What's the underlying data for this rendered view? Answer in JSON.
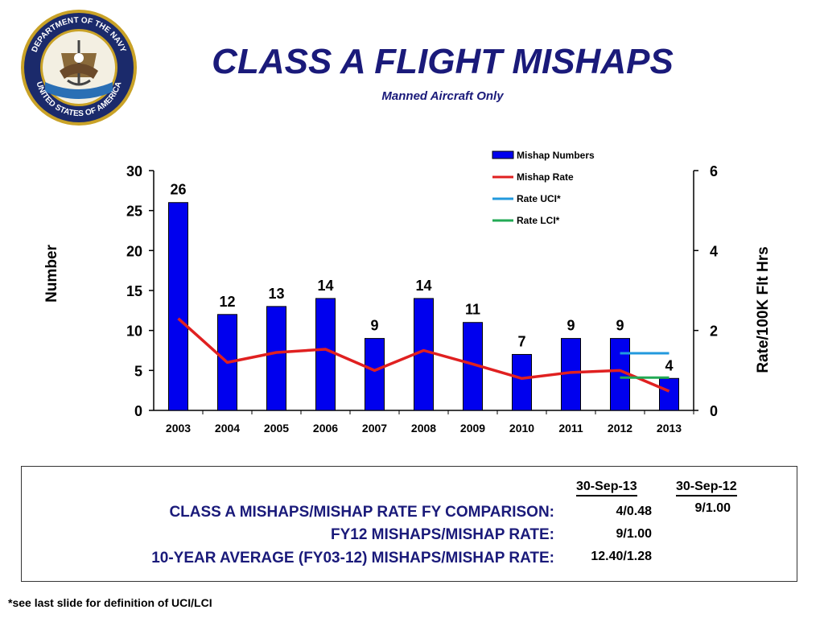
{
  "seal": {
    "text": "DEPARTMENT OF THE NAVY • UNITED STATES OF AMERICA"
  },
  "header": {
    "title": "CLASS A FLIGHT MISHAPS",
    "subtitle": "Manned Aircraft Only"
  },
  "chart_data": {
    "type": "bar",
    "categories": [
      "2003",
      "2004",
      "2005",
      "2006",
      "2007",
      "2008",
      "2009",
      "2010",
      "2011",
      "2012",
      "2013"
    ],
    "series": [
      {
        "name": "Mishap Numbers",
        "type": "bar",
        "axis": "left",
        "values": [
          26,
          12,
          13,
          14,
          9,
          14,
          11,
          7,
          9,
          9,
          4
        ],
        "color": "#0000ee"
      },
      {
        "name": "Mishap Rate",
        "type": "line",
        "axis": "right",
        "values": [
          2.3,
          1.2,
          1.45,
          1.53,
          1.0,
          1.5,
          1.16,
          0.8,
          0.95,
          1.0,
          0.48
        ],
        "color": "#e02020"
      },
      {
        "name": "Rate UCI*",
        "type": "line",
        "axis": "right",
        "x": [
          "2012",
          "2013"
        ],
        "values": [
          1.43,
          1.43
        ],
        "color": "#2299dd"
      },
      {
        "name": "Rate LCI*",
        "type": "line",
        "axis": "right",
        "x": [
          "2012",
          "2013"
        ],
        "values": [
          0.82,
          0.82
        ],
        "color": "#22aa55"
      }
    ],
    "data_labels": [
      "26",
      "12",
      "13",
      "14",
      "9",
      "14",
      "11",
      "7",
      "9",
      "9",
      "4"
    ],
    "ylabel": "Number",
    "y2label": "Rate/100K Flt Hrs",
    "ylim": [
      0,
      30
    ],
    "y2lim": [
      0,
      6
    ],
    "yticks": [
      "0",
      "5",
      "10",
      "15",
      "20",
      "25",
      "30"
    ],
    "y2ticks": [
      "0",
      "2",
      "4",
      "6"
    ],
    "legend": "top-right",
    "grid": false
  },
  "comparison": {
    "col_headers": [
      "30-Sep-13",
      "30-Sep-12"
    ],
    "rows": [
      {
        "label": "CLASS A MISHAPS/MISHAP RATE FY COMPARISON:",
        "v13": "4/0.48",
        "v12": "9/1.00"
      },
      {
        "label": "FY12 MISHAPS/MISHAP RATE:",
        "v13": "9/1.00",
        "v12": ""
      },
      {
        "label": "10-YEAR AVERAGE (FY03-12) MISHAPS/MISHAP RATE:",
        "v13": "12.40/1.28",
        "v12": ""
      }
    ]
  },
  "footnote": "*see last slide for definition of UCI/LCI",
  "colors": {
    "title": "#1a1a7a",
    "bar": "#0000ee",
    "rate": "#e02020",
    "uci": "#2299dd",
    "lci": "#22aa55",
    "seal_gold": "#c9a227",
    "seal_blue": "#1b2a6b"
  }
}
